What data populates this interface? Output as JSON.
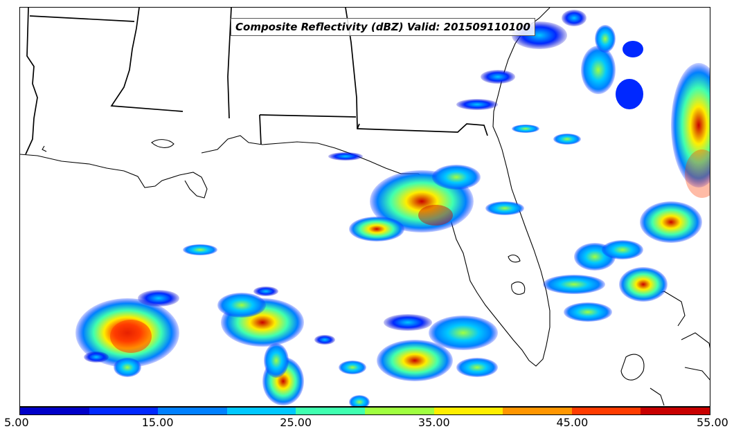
{
  "title": "Composite Reflectivity (dBZ) Valid: 201509110100",
  "colorbar": {
    "colors": [
      "#0000c8",
      "#0028ff",
      "#0080ff",
      "#00c8ff",
      "#40ffb0",
      "#a0ff40",
      "#ffee00",
      "#ff9600",
      "#ff3c00",
      "#c80000"
    ],
    "labels": [
      "5.00",
      "15.00",
      "25.00",
      "35.00",
      "45.00",
      "55.00"
    ]
  },
  "map": {
    "boundaries": [
      "state-lines",
      "coastlines"
    ],
    "layer": "composite-reflectivity"
  }
}
